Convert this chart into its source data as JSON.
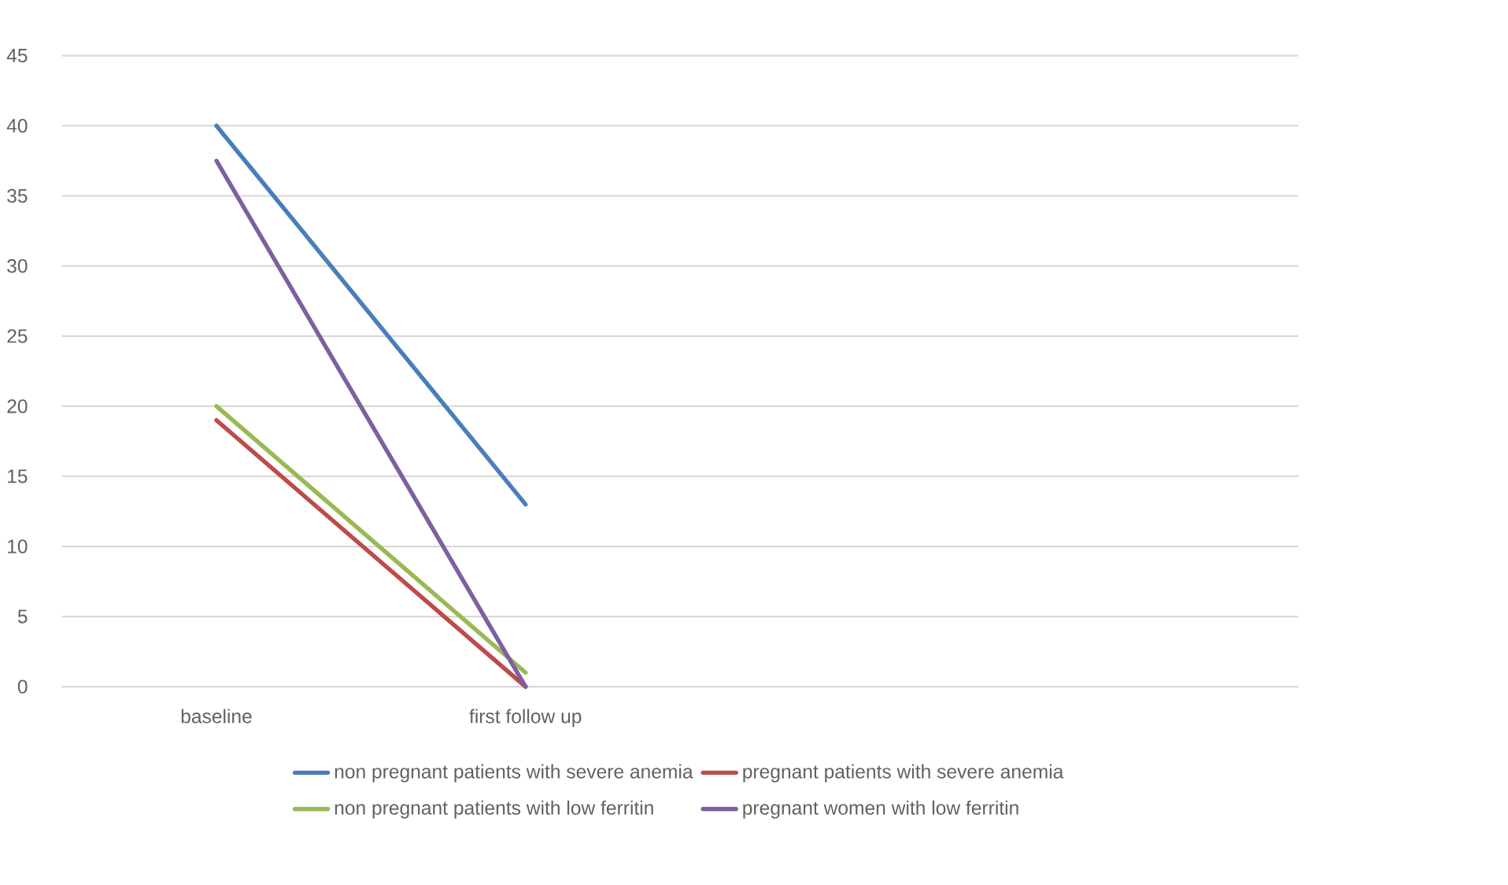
{
  "chart_data": {
    "type": "line",
    "categories": [
      "baseline",
      "first follow up",
      null,
      null
    ],
    "series": [
      {
        "name": "non pregnant patients with severe anemia",
        "color": "#4a7ebb",
        "values": [
          40,
          13,
          null,
          null
        ]
      },
      {
        "name": "pregnant patients with severe anemia",
        "color": "#be4b48",
        "values": [
          19,
          0,
          null,
          null
        ]
      },
      {
        "name": "non pregnant patients with low ferritin",
        "color": "#98b954",
        "values": [
          20,
          1,
          null,
          null
        ]
      },
      {
        "name": "pregnant women with low ferritin",
        "color": "#7d60a0",
        "values": [
          37.5,
          0,
          null,
          null
        ]
      }
    ],
    "ylim": [
      0,
      45
    ],
    "yticks": [
      0,
      5,
      10,
      15,
      20,
      25,
      30,
      35,
      40,
      45
    ],
    "grid": "y",
    "legend": "bottom"
  }
}
